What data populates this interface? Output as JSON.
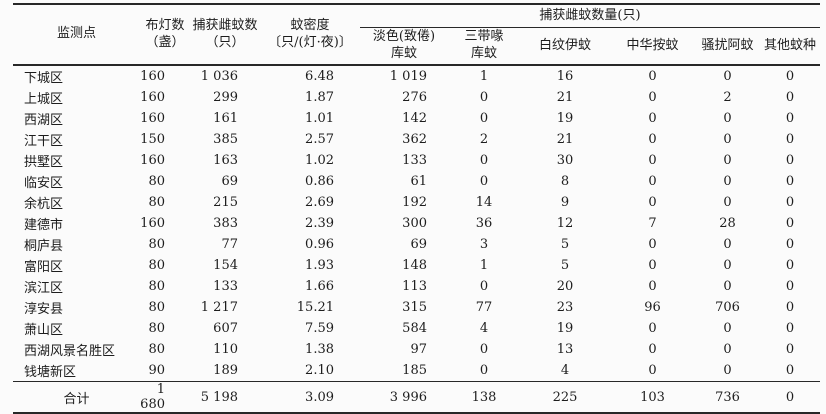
{
  "page": {
    "background": "#fbfbfb",
    "text_color": "#1d1d1d",
    "rule_color": "#282828"
  },
  "table": {
    "span_header": "捕获雌蚊数量(只)",
    "columns": [
      {
        "key": "monitoring-point",
        "label": "监测点"
      },
      {
        "key": "lamp-count",
        "label": "布灯数\n（盏）"
      },
      {
        "key": "female-mosquitoes-caught",
        "label": "捕获雌蚊数\n（只）"
      },
      {
        "key": "mosquito-density",
        "label": "蚊密度\n〔只/(灯·夜)〕"
      },
      {
        "key": "culex-pipiens",
        "label": "淡色(致倦)\n库蚊"
      },
      {
        "key": "culex-tritaeniorhynchus",
        "label": "三带喙\n库蚊"
      },
      {
        "key": "aedes-albopictus",
        "label": "白纹伊蚊"
      },
      {
        "key": "anopheles-sinensis",
        "label": "中华按蚊"
      },
      {
        "key": "armigeres-subalbatus",
        "label": "骚扰阿蚊"
      },
      {
        "key": "other-species",
        "label": "其他蚊种"
      }
    ],
    "rows": [
      [
        "下城区",
        "160",
        "1 036",
        "6.48",
        "1 019",
        "1",
        "16",
        "0",
        "0",
        "0"
      ],
      [
        "上城区",
        "160",
        "299",
        "1.87",
        "276",
        "0",
        "21",
        "0",
        "2",
        "0"
      ],
      [
        "西湖区",
        "160",
        "161",
        "1.01",
        "142",
        "0",
        "19",
        "0",
        "0",
        "0"
      ],
      [
        "江干区",
        "150",
        "385",
        "2.57",
        "362",
        "2",
        "21",
        "0",
        "0",
        "0"
      ],
      [
        "拱墅区",
        "160",
        "163",
        "1.02",
        "133",
        "0",
        "30",
        "0",
        "0",
        "0"
      ],
      [
        "临安区",
        "80",
        "69",
        "0.86",
        "61",
        "0",
        "8",
        "0",
        "0",
        "0"
      ],
      [
        "余杭区",
        "80",
        "215",
        "2.69",
        "192",
        "14",
        "9",
        "0",
        "0",
        "0"
      ],
      [
        "建德市",
        "160",
        "383",
        "2.39",
        "300",
        "36",
        "12",
        "7",
        "28",
        "0"
      ],
      [
        "桐庐县",
        "80",
        "77",
        "0.96",
        "69",
        "3",
        "5",
        "0",
        "0",
        "0"
      ],
      [
        "富阳区",
        "80",
        "154",
        "1.93",
        "148",
        "1",
        "5",
        "0",
        "0",
        "0"
      ],
      [
        "滨江区",
        "80",
        "133",
        "1.66",
        "113",
        "0",
        "20",
        "0",
        "0",
        "0"
      ],
      [
        "淳安县",
        "80",
        "1 217",
        "15.21",
        "315",
        "77",
        "23",
        "96",
        "706",
        "0"
      ],
      [
        "萧山区",
        "80",
        "607",
        "7.59",
        "584",
        "4",
        "19",
        "0",
        "0",
        "0"
      ],
      [
        "西湖风景名胜区",
        "80",
        "110",
        "1.38",
        "97",
        "0",
        "13",
        "0",
        "0",
        "0"
      ],
      [
        "钱塘新区",
        "90",
        "189",
        "2.10",
        "185",
        "0",
        "4",
        "0",
        "0",
        "0"
      ]
    ],
    "total_row": [
      "合计",
      "1 680",
      "5 198",
      "3.09",
      "3 996",
      "138",
      "225",
      "103",
      "736",
      "0"
    ]
  }
}
